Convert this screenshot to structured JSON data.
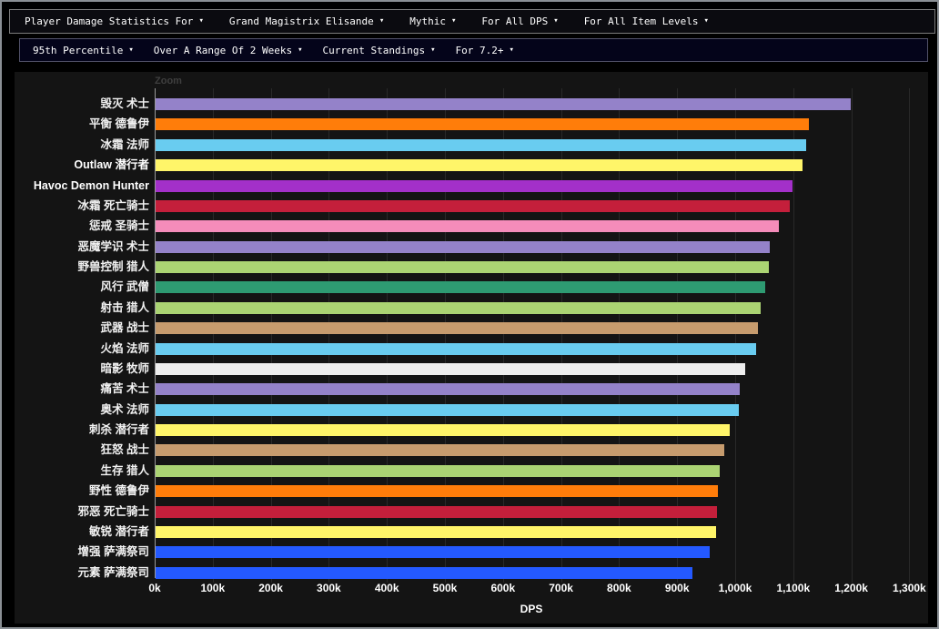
{
  "toolbar_primary": {
    "items": [
      {
        "label": "Player Damage Statistics For"
      },
      {
        "label": "Grand Magistrix Elisande"
      },
      {
        "label": "Mythic"
      },
      {
        "label": "For All DPS"
      },
      {
        "label": "For All Item Levels"
      }
    ]
  },
  "toolbar_secondary": {
    "items": [
      {
        "label": "95th Percentile"
      },
      {
        "label": "Over A Range Of 2 Weeks"
      },
      {
        "label": "Current Standings"
      },
      {
        "label": "For 7.2+"
      }
    ]
  },
  "chart": {
    "zoom_label": "Zoom"
  },
  "chart_data": {
    "type": "bar",
    "orientation": "horizontal",
    "title": "",
    "xlabel": "DPS",
    "ylabel": "",
    "grid": true,
    "legend": false,
    "xlim": [
      0,
      1334000
    ],
    "x_tick_interval": 100000,
    "x_ticks": [
      "0k",
      "100k",
      "200k",
      "300k",
      "400k",
      "500k",
      "600k",
      "700k",
      "800k",
      "900k",
      "1,000k",
      "1,100k",
      "1,200k",
      "1,300k"
    ],
    "categories": [
      "毁灭 术士",
      "平衡 德鲁伊",
      "冰霜 法师",
      "Outlaw 潜行者",
      "Havoc Demon Hunter",
      "冰霜 死亡骑士",
      "惩戒 圣骑士",
      "恶魔学识 术士",
      "野兽控制 猎人",
      "风行 武僧",
      "射击 猎人",
      "武器 战士",
      "火焰 法师",
      "暗影 牧师",
      "痛苦 术士",
      "奥术 法师",
      "刺杀 潜行者",
      "狂怒 战士",
      "生存 猎人",
      "野性 德鲁伊",
      "邪恶 死亡骑士",
      "敏锐 潜行者",
      "增强 萨满祭司",
      "元素 萨满祭司"
    ],
    "values": [
      1197000,
      1125000,
      1120000,
      1114000,
      1097000,
      1093000,
      1073000,
      1058000,
      1056000,
      1050000,
      1042000,
      1037000,
      1035000,
      1016000,
      1006000,
      1004000,
      989000,
      979000,
      972000,
      968000,
      967000,
      966000,
      955000,
      925000
    ],
    "colors": [
      "#9482C9",
      "#FF7D0A",
      "#69CCF0",
      "#FFF569",
      "#A330C9",
      "#C41F3B",
      "#F58CBA",
      "#9482C9",
      "#ABD473",
      "#2E9B72",
      "#ABD473",
      "#C79C6E",
      "#69CCF0",
      "#EEEEEE",
      "#9482C9",
      "#69CCF0",
      "#FFF569",
      "#C79C6E",
      "#ABD473",
      "#FF7D0A",
      "#C41F3B",
      "#FFF569",
      "#2459FF",
      "#2459FF"
    ],
    "highlighted_categories": [
      "Outlaw 潜行者",
      "Havoc Demon Hunter"
    ],
    "colors_semantic": {
      "warlock": "#9482C9",
      "druid": "#FF7D0A",
      "mage": "#69CCF0",
      "rogue": "#FFF569",
      "demon_hunter": "#A330C9",
      "death_knight": "#C41F3B",
      "paladin": "#F58CBA",
      "hunter": "#ABD473",
      "monk": "#2E9B72",
      "warrior": "#C79C6E",
      "priest": "#EEEEEE",
      "shaman": "#2459FF"
    }
  }
}
